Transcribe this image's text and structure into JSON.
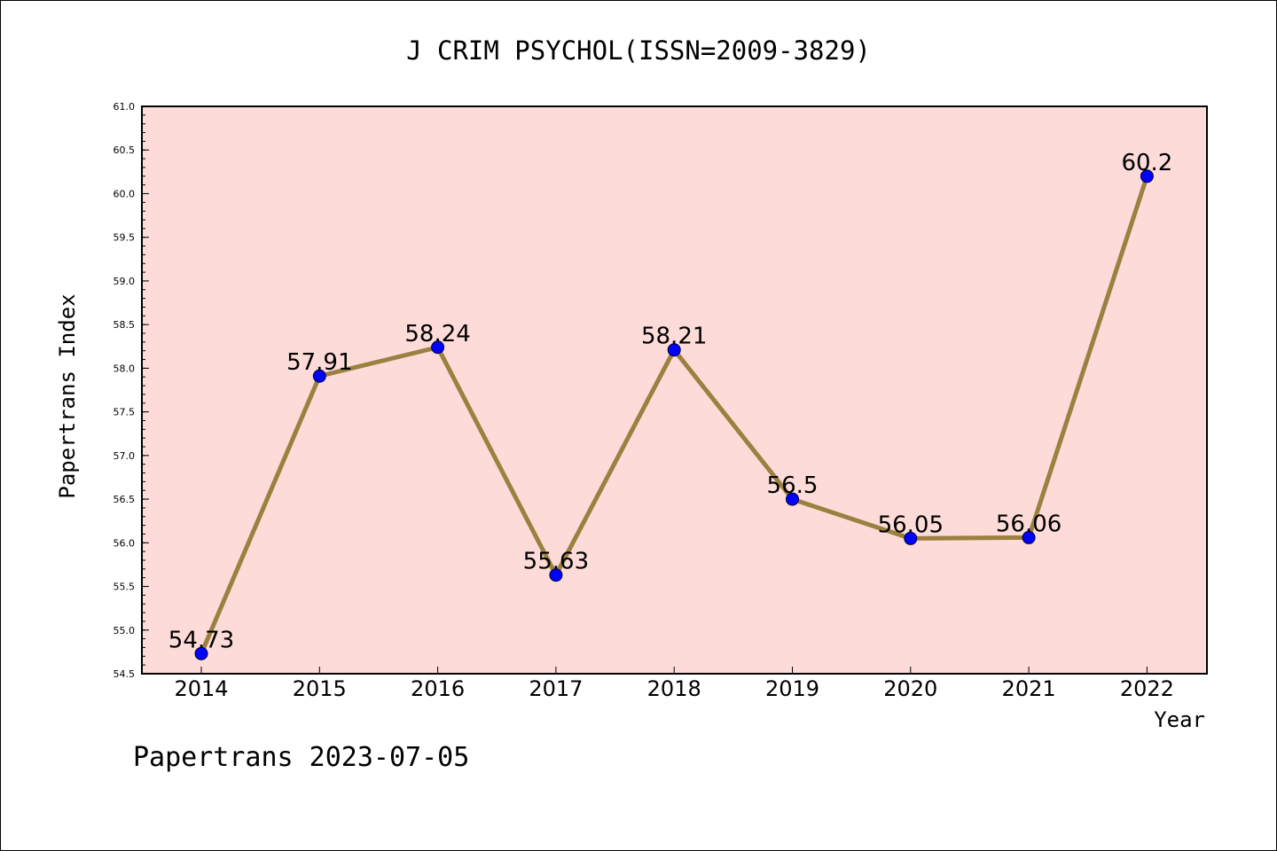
{
  "chart_data": {
    "type": "line",
    "title": "J CRIM PSYCHOL(ISSN=2009-3829)",
    "xlabel": "Year",
    "ylabel": "Papertrans Index",
    "categories": [
      "2014",
      "2015",
      "2016",
      "2017",
      "2018",
      "2019",
      "2020",
      "2021",
      "2022"
    ],
    "values": [
      54.73,
      57.91,
      58.24,
      55.63,
      58.21,
      56.5,
      56.05,
      56.06,
      60.2
    ],
    "data_labels": [
      "54.73",
      "57.91",
      "58.24",
      "55.63",
      "58.21",
      "56.5",
      "56.05",
      "56.06",
      "60.2"
    ],
    "ylim": [
      54.5,
      61.0
    ],
    "yticks": [
      "54.5",
      "55.0",
      "55.5",
      "56.0",
      "56.5",
      "57.0",
      "57.5",
      "58.0",
      "58.5",
      "59.0",
      "59.5",
      "60.0",
      "60.5",
      "61.0"
    ],
    "grid": false,
    "colors": {
      "plot_background": "#fddbd8",
      "line": "#9b8040",
      "marker": "#0000ff"
    }
  },
  "footer": "Papertrans 2023-07-05"
}
